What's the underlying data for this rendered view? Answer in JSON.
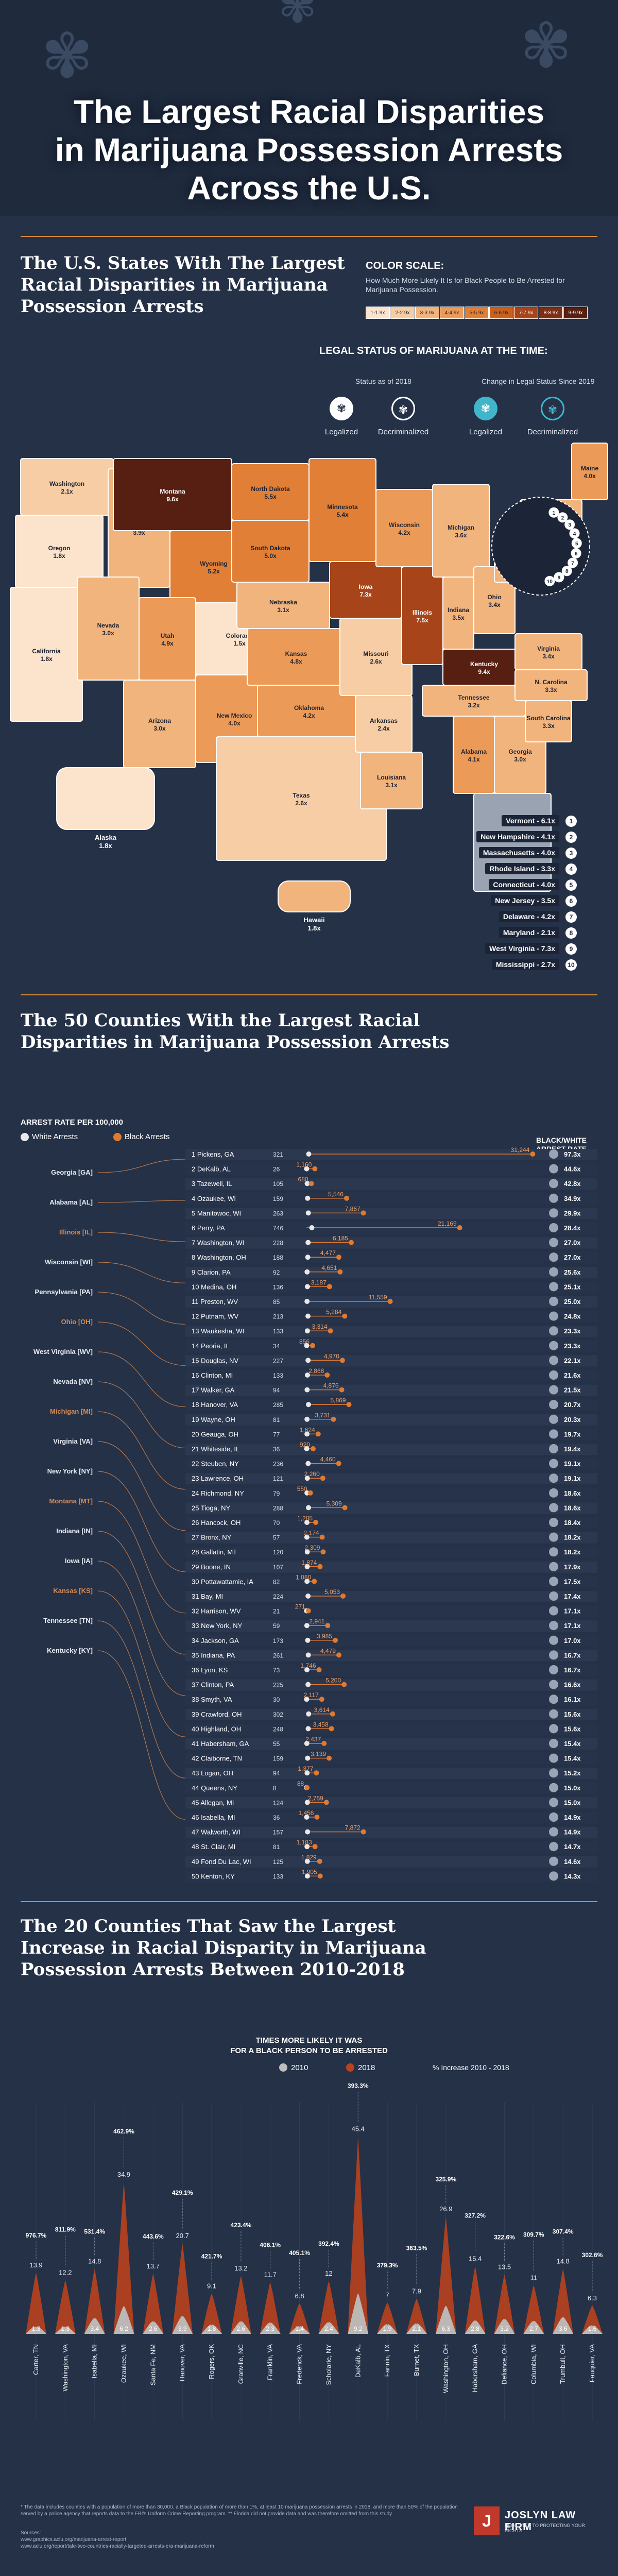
{
  "header": {
    "title_lines": [
      "The Largest Racial Disparities",
      "in Marijuana Possession Arrests",
      "Across the U.S."
    ]
  },
  "section1": {
    "title_lines": [
      "The U.S. States With The Largest",
      "Racial Disparities in Marijuana",
      "Possession Arrests"
    ]
  },
  "color_scale": {
    "title": "COLOR SCALE:",
    "subtitle": "How Much More Likely It Is for Black People to Be Arrested for Marijuana Possession.",
    "bins": [
      {
        "label": "1-1.9x",
        "color": "#fbe3cc"
      },
      {
        "label": "2-2.9x",
        "color": "#f7cda5"
      },
      {
        "label": "3-3.9x",
        "color": "#f2b47d"
      },
      {
        "label": "4-4.9x",
        "color": "#ec9a57"
      },
      {
        "label": "5-5.9x",
        "color": "#e07f35"
      },
      {
        "label": "6-6.9x",
        "color": "#c9601d"
      },
      {
        "label": "7-7.9x",
        "color": "#a8441a"
      },
      {
        "label": "8-8.9x",
        "color": "#7d2e16"
      },
      {
        "label": "9-9.9x",
        "color": "#571e12"
      }
    ]
  },
  "legal_status": {
    "title": "LEGAL STATUS OF MARIJUANA AT THE TIME:",
    "status_2018": "Status as of 2018",
    "change_since_2019": "Change in Legal Status Since 2019",
    "legalized": "Legalized",
    "decriminalized": "Decriminalized",
    "legalized_icon": "cannabis-leaf-icon",
    "decriminalized_icon": "cannabis-leaf-icon",
    "colors": {
      "status_2018": "#ffffff",
      "change": "#3fb6c9"
    }
  },
  "states": [
    {
      "id": "WA",
      "name": "Washington",
      "value": "2.1x",
      "v": 2.1
    },
    {
      "id": "OR",
      "name": "Oregon",
      "value": "1.8x",
      "v": 1.8
    },
    {
      "id": "CA",
      "name": "California",
      "value": "1.8x",
      "v": 1.8
    },
    {
      "id": "ID",
      "name": "Idaho",
      "value": "3.9x",
      "v": 3.9
    },
    {
      "id": "NV",
      "name": "Nevada",
      "value": "3.0x",
      "v": 3.0
    },
    {
      "id": "MT",
      "name": "Montana",
      "value": "9.6x",
      "v": 9.6
    },
    {
      "id": "WY",
      "name": "Wyoming",
      "value": "5.2x",
      "v": 5.2
    },
    {
      "id": "UT",
      "name": "Utah",
      "value": "4.9x",
      "v": 4.9
    },
    {
      "id": "AZ",
      "name": "Arizona",
      "value": "3.0x",
      "v": 3.0
    },
    {
      "id": "CO",
      "name": "Colorado",
      "value": "1.5x",
      "v": 1.5
    },
    {
      "id": "NM",
      "name": "New Mexico",
      "value": "4.0x",
      "v": 4.0
    },
    {
      "id": "ND",
      "name": "North Dakota",
      "value": "5.5x",
      "v": 5.5
    },
    {
      "id": "SD",
      "name": "South Dakota",
      "value": "5.0x",
      "v": 5.0
    },
    {
      "id": "NE",
      "name": "Nebraska",
      "value": "3.1x",
      "v": 3.1
    },
    {
      "id": "KS",
      "name": "Kansas",
      "value": "4.8x",
      "v": 4.8
    },
    {
      "id": "OK",
      "name": "Oklahoma",
      "value": "4.2x",
      "v": 4.2
    },
    {
      "id": "TX",
      "name": "Texas",
      "value": "2.6x",
      "v": 2.6
    },
    {
      "id": "MN",
      "name": "Minnesota",
      "value": "5.4x",
      "v": 5.4
    },
    {
      "id": "IA",
      "name": "Iowa",
      "value": "7.3x",
      "v": 7.3
    },
    {
      "id": "MO",
      "name": "Missouri",
      "value": "2.6x",
      "v": 2.6
    },
    {
      "id": "AR",
      "name": "Arkansas",
      "value": "2.4x",
      "v": 2.4
    },
    {
      "id": "LA",
      "name": "Louisiana",
      "value": "3.1x",
      "v": 3.1
    },
    {
      "id": "WI",
      "name": "Wisconsin",
      "value": "4.2x",
      "v": 4.2
    },
    {
      "id": "IL",
      "name": "Illinois",
      "value": "7.5x",
      "v": 7.5
    },
    {
      "id": "MI",
      "name": "Michigan",
      "value": "3.6x",
      "v": 3.6
    },
    {
      "id": "IN",
      "name": "Indiana",
      "value": "3.5x",
      "v": 3.5
    },
    {
      "id": "OH",
      "name": "Ohio",
      "value": "3.4x",
      "v": 3.4
    },
    {
      "id": "KY",
      "name": "Kentucky",
      "value": "9.4x",
      "v": 9.4
    },
    {
      "id": "TN",
      "name": "Tennessee",
      "value": "3.2x",
      "v": 3.2
    },
    {
      "id": "AL",
      "name": "Alabama",
      "value": "4.1x",
      "v": 4.1
    },
    {
      "id": "GA",
      "name": "Georgia",
      "value": "3.0x",
      "v": 3.0
    },
    {
      "id": "FL",
      "name": "Florida",
      "value": "",
      "v": null
    },
    {
      "id": "SC",
      "name": "South Carolina",
      "value": "3.3x",
      "v": 3.3
    },
    {
      "id": "NC",
      "name": "N. Carolina",
      "value": "3.3x",
      "v": 3.3
    },
    {
      "id": "VA",
      "name": "Virginia",
      "value": "3.4x",
      "v": 3.4
    },
    {
      "id": "PA",
      "name": "Pennsylvania",
      "value": "3.0x",
      "v": 3.0
    },
    {
      "id": "NY",
      "name": "New York",
      "value": "3.5x",
      "v": 3.5
    },
    {
      "id": "ME",
      "name": "Maine",
      "value": "4.0x",
      "v": 4.0
    },
    {
      "id": "AK",
      "name": "Alaska",
      "value": "1.8x",
      "v": 1.8
    },
    {
      "id": "HI",
      "name": "Hawaii",
      "value": "1.8x",
      "v": 1.8
    }
  ],
  "northeast_list": [
    {
      "n": "1",
      "label": "Vermont - 6.1x"
    },
    {
      "n": "2",
      "label": "New Hampshire - 4.1x"
    },
    {
      "n": "3",
      "label": "Massachusetts - 4.0x"
    },
    {
      "n": "4",
      "label": "Rhode Island - 3.3x"
    },
    {
      "n": "5",
      "label": "Connecticut - 4.0x"
    },
    {
      "n": "6",
      "label": "New Jersey - 3.5x"
    },
    {
      "n": "7",
      "label": "Delaware - 4.2x"
    },
    {
      "n": "8",
      "label": "Maryland - 2.1x"
    },
    {
      "n": "9",
      "label": "West Virginia - 7.3x"
    },
    {
      "n": "10",
      "label": "Mississippi - 2.7x"
    }
  ],
  "section2": {
    "title_lines": [
      "The 50 Counties With the Largest Racial",
      "Disparities in Marijuana Possession Arrests"
    ]
  },
  "chart_data": [
    {
      "type": "bar",
      "title": "ARREST RATE PER 100,000",
      "legend": [
        "White Arrests",
        "Black Arrests"
      ],
      "ratio_header": "BLACK/WHITE ARREST RATE RATIO",
      "colors": {
        "white": "#e9e9e9",
        "black": "#e07a30"
      },
      "xlim": [
        0,
        32000
      ],
      "counties": [
        "1 Pickens, GA",
        "2 DeKalb, AL",
        "3 Tazewell, IL",
        "4 Ozaukee, WI",
        "5 Manitowoc, WI",
        "6 Perry, PA",
        "7 Washington, WI",
        "8 Washington, OH",
        "9 Clarion, PA",
        "10 Medina, OH",
        "11 Preston, WV",
        "12 Putnam, WV",
        "13 Waukesha, WI",
        "14 Peoria, IL",
        "15 Douglas, NV",
        "16 Clinton, MI",
        "17 Walker, GA",
        "18 Hanover, VA",
        "19 Wayne, OH",
        "20 Geauga, OH",
        "21 Whiteside, IL",
        "22 Steuben, NY",
        "23 Lawrence, OH",
        "24 Richmond, NY",
        "25 Tioga, NY",
        "26 Hancock, OH",
        "27 Bronx, NY",
        "28 Gallatin, MT",
        "29 Boone, IN",
        "30 Pottawattamie, IA",
        "31 Bay, MI",
        "32 Harrison, WV",
        "33 New York, NY",
        "34 Jackson, GA",
        "35 Indiana, PA",
        "36 Lyon, KS",
        "37 Clinton, PA",
        "38 Smyth, VA",
        "39 Crawford, OH",
        "40 Highland, OH",
        "41 Habersham, GA",
        "42 Claiborne, TN",
        "43 Logan, OH",
        "44 Queens, NY",
        "45 Allegan, MI",
        "46 Isabella, MI",
        "47 Walworth, WI",
        "48 St. Clair, MI",
        "49 Fond Du Lac, WI",
        "50 Kenton, KY"
      ],
      "white": [
        321,
        26,
        105,
        159,
        263,
        746,
        228,
        188,
        92,
        136,
        85,
        213,
        133,
        34,
        227,
        133,
        94,
        285,
        81,
        77,
        36,
        236,
        121,
        79,
        288,
        70,
        57,
        120,
        107,
        82,
        224,
        21,
        59,
        173,
        261,
        73,
        225,
        30,
        302,
        248,
        55,
        159,
        94,
        8,
        124,
        36,
        157,
        81,
        125,
        133
      ],
      "black": [
        31244,
        1160,
        680,
        5546,
        7867,
        21169,
        6185,
        4477,
        4651,
        3187,
        11559,
        5284,
        3314,
        856,
        4970,
        2868,
        4876,
        5869,
        3731,
        1624,
        920,
        4460,
        2260,
        550,
        5309,
        1285,
        2174,
        2309,
        1874,
        1080,
        5053,
        271,
        2941,
        3985,
        4479,
        1746,
        5200,
        2117,
        3614,
        3458,
        2437,
        3139,
        1377,
        88,
        2759,
        1456,
        7872,
        1183,
        1829,
        1905
      ],
      "ratio": [
        "97.3x",
        "44.6x",
        "42.8x",
        "34.9x",
        "29.9x",
        "28.4x",
        "27.0x",
        "27.0x",
        "25.6x",
        "25.1x",
        "25.0x",
        "24.8x",
        "23.3x",
        "23.3x",
        "22.1x",
        "21.6x",
        "21.5x",
        "20.7x",
        "20.3x",
        "19.7x",
        "19.4x",
        "19.1x",
        "19.1x",
        "18.6x",
        "18.6x",
        "18.4x",
        "18.2x",
        "18.2x",
        "17.9x",
        "17.5x",
        "17.4x",
        "17.1x",
        "17.1x",
        "17.0x",
        "16.7x",
        "16.7x",
        "16.6x",
        "16.1x",
        "15.6x",
        "15.6x",
        "15.4x",
        "15.4x",
        "15.2x",
        "15.0x",
        "15.0x",
        "14.9x",
        "14.9x",
        "14.7x",
        "14.6x",
        "14.3x"
      ],
      "state_groups": [
        "Georgia [GA]",
        "Alabama [AL]",
        "Illinois [IL]",
        "Wisconsin [WI]",
        "Pennsylvania [PA]",
        "Ohio [OH]",
        "West Virginia [WV]",
        "Nevada [NV]",
        "Michigan [MI]",
        "Virginia [VA]",
        "New York [NY]",
        "Montana [MT]",
        "Indiana [IN]",
        "Iowa [IA]",
        "Kansas [KS]",
        "Tennessee [TN]",
        "Kentucky [KY]"
      ]
    },
    {
      "type": "area",
      "title": "TIMES MORE LIKELY IT WAS FOR A BLACK PERSON TO BE ARRESTED",
      "legend": [
        "2010",
        "2018",
        "% Increase 2010 - 2018"
      ],
      "colors": {
        "y2010": "#bdbdbd",
        "y2018": "#b9431d"
      },
      "ylim": [
        0,
        50
      ],
      "categories": [
        "Carter, TN",
        "Washington, VA",
        "Isabella, MI",
        "Ozaukee, WI",
        "Santa Fe, NM",
        "Hanover, VA",
        "Rogers, OK",
        "Granville, NC",
        "Franklin, VA",
        "Frederick, VA",
        "Scholarie, NY",
        "DeKalb, AL",
        "Fannin, TX",
        "Burnet, TX",
        "Washington, OH",
        "Habersham, GA",
        "Defiance, OH",
        "Columbia, WI",
        "Trumbull, OH",
        "Fauquier, VA"
      ],
      "y2010": [
        1.3,
        1.3,
        3.4,
        6.2,
        2.6,
        3.9,
        1.8,
        2.6,
        2.3,
        1.4,
        2.4,
        9.2,
        1.9,
        2.1,
        6.3,
        2.8,
        3.2,
        2.7,
        3.6,
        1.6
      ],
      "y2018": [
        13.9,
        12.2,
        14.8,
        34.9,
        13.7,
        20.7,
        9.1,
        13.2,
        11.7,
        6.8,
        12,
        45.4,
        7,
        7.9,
        26.9,
        15.4,
        13.5,
        11,
        14.8,
        6.3
      ],
      "y2018_labels": [
        "13.9",
        "12.2",
        "14.8",
        "34.9",
        "13.7",
        "20.7",
        "9.1",
        "13.2",
        "11.7",
        "6.8",
        "12",
        "45.4",
        "7",
        "7.9",
        "26.9",
        "15.4",
        "13.5",
        "11",
        "14.8",
        "6.3"
      ],
      "y2010_labels": [
        "1.3",
        "1.3",
        "3.4",
        "6.2",
        "2.6",
        "3.9",
        "1.8",
        "2.6",
        "2.3",
        "1.4",
        "2.4",
        "9.2",
        "1.9",
        "2.1",
        "6.3",
        "2.8",
        "3.2",
        "2.7",
        "3.6",
        "1.6"
      ],
      "pct_increase": [
        "976.7%",
        "811.9%",
        "531.4%",
        "462.9%",
        "443.6%",
        "429.1%",
        "421.7%",
        "423.4%",
        "406.1%",
        "405.1%",
        "392.4%",
        "393.3%",
        "379.3%",
        "363.5%",
        "325.9%",
        "327.2%",
        "322.6%",
        "309.7%",
        "307.4%",
        "302.6%"
      ]
    }
  ],
  "section3": {
    "title_lines": [
      "The 20 Counties That Saw the Largest",
      "Increase in Racial Disparity in Marijuana",
      "Possession Arrests Between 2010-2018"
    ]
  },
  "footer": {
    "footnote": "* The data includes counties with a population of more than 30,000, a Black population of more than 1%, at least 10 marijuana possession arrests in 2018, and more than 50% of the population served by a police agency that reports data to the FBI's Uniform Crime Reporting program. ** Florida did not provide data and was therefore omitted from this study.",
    "sources_title": "Sources:",
    "sources": [
      "www.graphics.aclu.org/marijuana-arrest-report",
      "www.aclu.org/report/tale-two-countries-racially-targeted-arrests-era-marijuana-reform"
    ],
    "logo_letter": "J",
    "logo_name": "JOSLYN LAW FIRM",
    "logo_tagline": "DEDICATED TO PROTECTING YOUR RIGHTS"
  }
}
